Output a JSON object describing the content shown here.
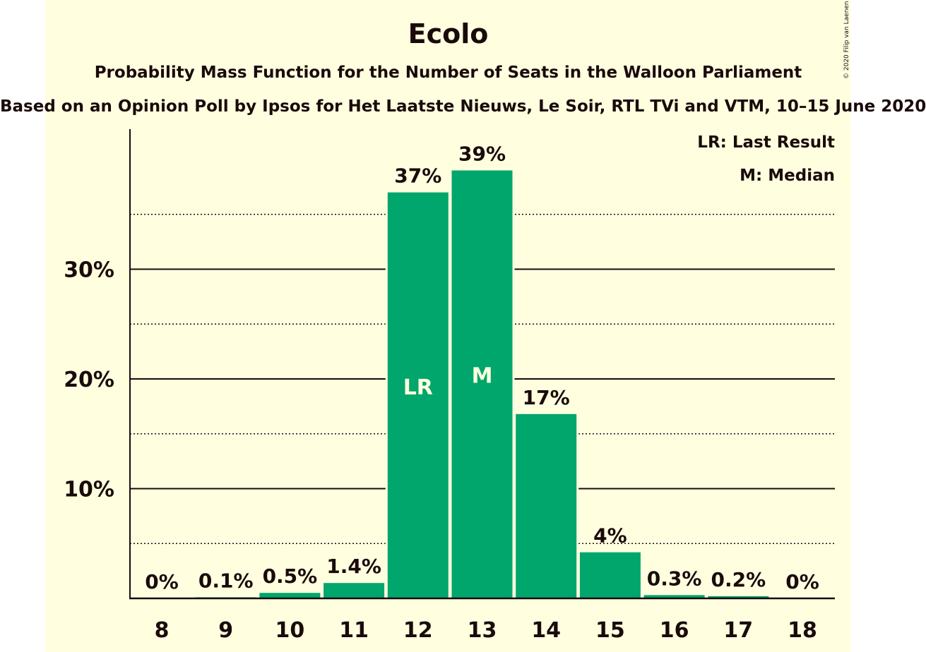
{
  "title": "Ecolo",
  "subtitle": "Probability Mass Function for the Number of Seats in the Walloon Parliament",
  "caption": "Based on an Opinion Poll by Ipsos for Het Laatste Nieuws, Le Soir, RTL TVi and VTM, 10–15 June 2020",
  "copyright": "© 2020 Filip van Laenen",
  "legend": [
    "LR: Last Result",
    "M: Median"
  ],
  "colors": {
    "bar": "#00a66b",
    "background": "#ffffe0",
    "text": "#1a0a0a"
  },
  "chart_data": {
    "type": "bar",
    "title": "Ecolo",
    "categories": [
      "8",
      "9",
      "10",
      "11",
      "12",
      "13",
      "14",
      "15",
      "16",
      "17",
      "18"
    ],
    "values": [
      0,
      0.1,
      0.5,
      1.4,
      37,
      39,
      16.8,
      4.2,
      0.3,
      0.2,
      0
    ],
    "data_labels": [
      "0%",
      "0.1%",
      "0.5%",
      "1.4%",
      "37%",
      "39%",
      "17%",
      "4%",
      "0.3%",
      "0.2%",
      "0%"
    ],
    "bar_markers": {
      "12": "LR",
      "13": "M"
    },
    "yticks": [
      10,
      20,
      30
    ],
    "ytick_labels": [
      "10%",
      "20%",
      "30%"
    ],
    "minor_gridlines": [
      5,
      15,
      25,
      35
    ],
    "ylim": [
      0,
      42.8
    ],
    "xlabel": "",
    "ylabel": "",
    "grid": true,
    "legend_position": "top-right"
  }
}
